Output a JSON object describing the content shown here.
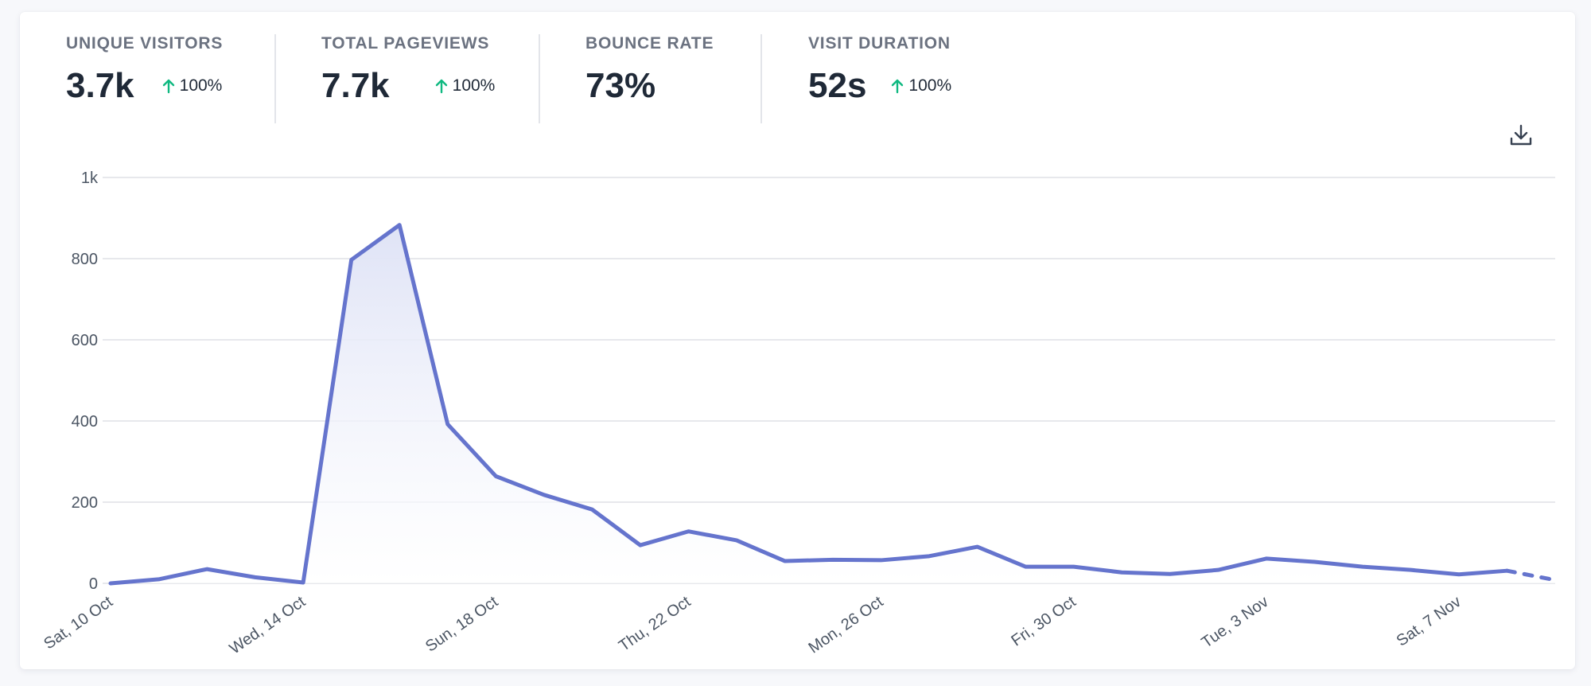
{
  "stats": [
    {
      "label": "UNIQUE VISITORS",
      "value": "3.7k",
      "change": "100%",
      "direction": "up"
    },
    {
      "label": "TOTAL PAGEVIEWS",
      "value": "7.7k",
      "change": "100%",
      "direction": "up"
    },
    {
      "label": "BOUNCE RATE",
      "value": "73%",
      "change": "",
      "direction": ""
    },
    {
      "label": "VISIT DURATION",
      "value": "52s",
      "change": "100%",
      "direction": "up"
    }
  ],
  "icons": {
    "change_arrow": "arrow-up-icon",
    "download": "download-icon"
  },
  "colors": {
    "line": "#6574cd",
    "fill_top": "#dfe3f6",
    "grid": "#dfe1e6",
    "positive": "#10b981"
  },
  "chart_data": {
    "type": "line",
    "x": [
      "10 Oct",
      "11 Oct",
      "12 Oct",
      "13 Oct",
      "14 Oct",
      "15 Oct",
      "16 Oct",
      "17 Oct",
      "18 Oct",
      "19 Oct",
      "20 Oct",
      "21 Oct",
      "22 Oct",
      "23 Oct",
      "24 Oct",
      "25 Oct",
      "26 Oct",
      "27 Oct",
      "28 Oct",
      "29 Oct",
      "30 Oct",
      "31 Oct",
      "1 Nov",
      "2 Nov",
      "3 Nov",
      "4 Nov",
      "5 Nov",
      "6 Nov",
      "7 Nov",
      "8 Nov",
      "9 Nov"
    ],
    "series": [
      {
        "values": [
          0,
          10,
          35,
          15,
          2,
          797,
          883,
          392,
          264,
          218,
          182,
          94,
          128,
          106,
          55,
          58,
          57,
          67,
          90,
          41,
          41,
          27,
          23,
          33,
          61,
          53,
          41,
          33,
          22,
          31,
          8
        ],
        "incomplete_from_index": 29
      }
    ],
    "x_tick_labels": [
      "Sat, 10 Oct",
      "Wed, 14 Oct",
      "Sun, 18 Oct",
      "Thu, 22 Oct",
      "Mon, 26 Oct",
      "Fri, 30 Oct",
      "Tue, 3 Nov",
      "Sat, 7 Nov"
    ],
    "x_tick_every": 4,
    "y_ticks": [
      0,
      200,
      400,
      600,
      800,
      1000
    ],
    "y_tick_labels": [
      "0",
      "200",
      "400",
      "600",
      "800",
      "1k"
    ],
    "ylim": [
      0,
      1000
    ],
    "grid": true,
    "legend": "none",
    "area_fill": true
  }
}
